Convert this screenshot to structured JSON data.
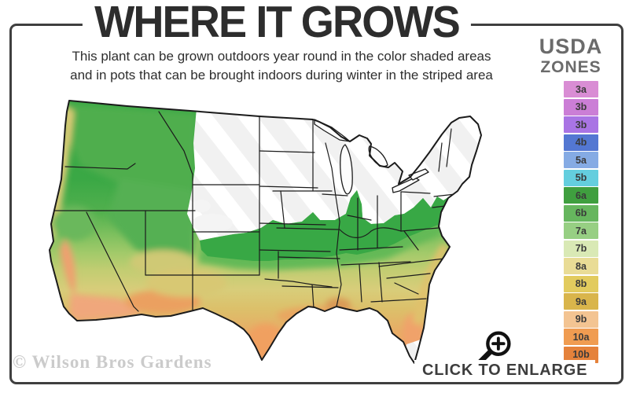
{
  "header": {
    "title": "WHERE IT GROWS",
    "subtitle_line1": "This plant can be grown outdoors year round in the color shaded areas",
    "subtitle_line2": "and in pots that can be brought indoors during winter in the striped area"
  },
  "legend": {
    "title_line1": "USDA",
    "title_line2": "ZONES",
    "zones": [
      {
        "label": "3a",
        "color": "#d98dd4"
      },
      {
        "label": "3b",
        "color": "#cb7ed6"
      },
      {
        "label": "3b",
        "color": "#a974e4"
      },
      {
        "label": "4b",
        "color": "#5377d2"
      },
      {
        "label": "5a",
        "color": "#85abe4"
      },
      {
        "label": "5b",
        "color": "#64cede"
      },
      {
        "label": "6a",
        "color": "#3f9f3f"
      },
      {
        "label": "6b",
        "color": "#66b65e"
      },
      {
        "label": "7a",
        "color": "#97cf83"
      },
      {
        "label": "7b",
        "color": "#d9e9b5"
      },
      {
        "label": "8a",
        "color": "#e9dc96"
      },
      {
        "label": "8b",
        "color": "#e2cb5e"
      },
      {
        "label": "9a",
        "color": "#d9b54b"
      },
      {
        "label": "9b",
        "color": "#f3c492"
      },
      {
        "label": "10a",
        "color": "#f09c51"
      },
      {
        "label": "10b",
        "color": "#e5823b"
      }
    ]
  },
  "map": {
    "watermark": "© Wilson Bros Gardens"
  },
  "footer": {
    "enlarge_label": "CLICK TO ENLARGE"
  },
  "colors": {
    "frame": "#3f3f3f",
    "title_text": "#2d2d2d",
    "legend_title_text": "#6b6b6b",
    "watermark_text": "#cbcbcb",
    "map_green": "#38a845",
    "map_not_hardy_area": "#f2f2f2"
  }
}
